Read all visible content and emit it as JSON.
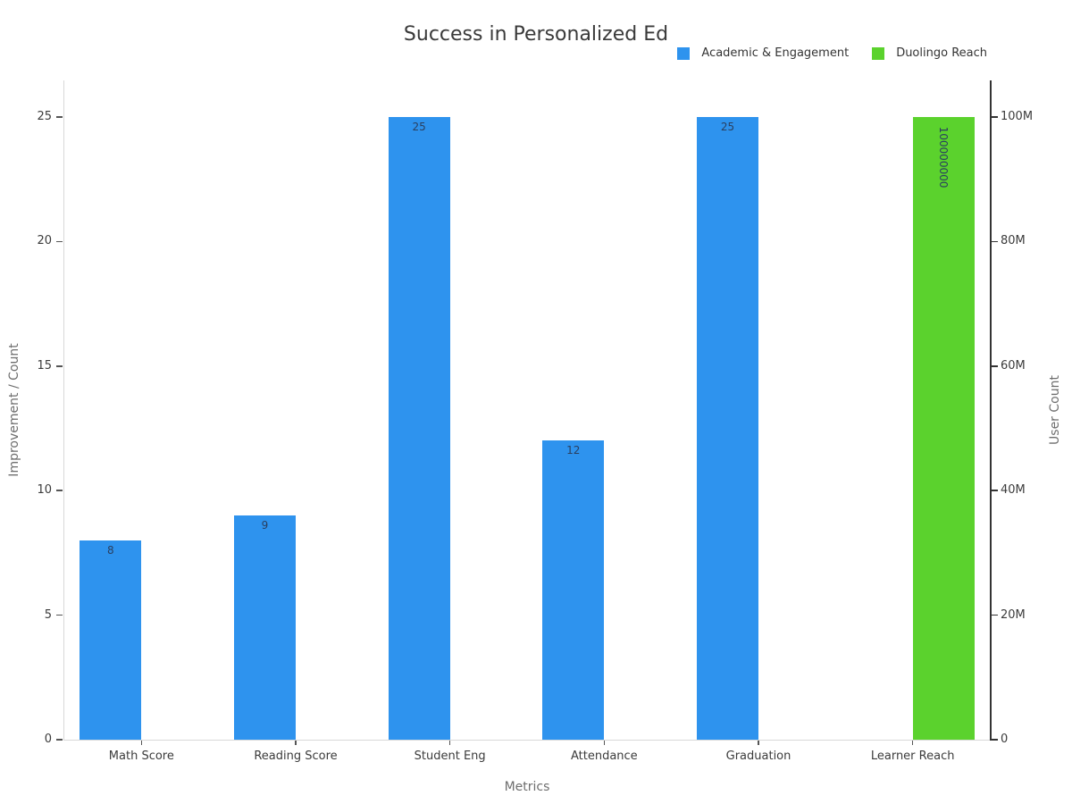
{
  "chart_data": {
    "type": "bar",
    "title": "Success in Personalized Ed",
    "xlabel": "Metrics",
    "ylabel": "Improvement / Count",
    "ylabel_right": "User Count",
    "categories": [
      "Math Score",
      "Reading Score",
      "Student Eng",
      "Attendance",
      "Graduation",
      "Learner Reach"
    ],
    "series": [
      {
        "name": "Academic & Engagement",
        "yaxis": "left",
        "color": "#2e93ee",
        "values": [
          8,
          9,
          25,
          12,
          25,
          null
        ],
        "data_labels": [
          "8",
          "9",
          "25",
          "12",
          "25",
          ""
        ]
      },
      {
        "name": "Duolingo Reach",
        "yaxis": "right",
        "color": "#5bd22d",
        "values": [
          null,
          null,
          null,
          null,
          null,
          100000000
        ],
        "data_labels": [
          "",
          "",
          "",
          "",
          "",
          "100000000"
        ],
        "label_orientation": "vertical"
      }
    ],
    "yticks_left": {
      "labels": [
        "0",
        "5",
        "10",
        "15",
        "20",
        "25"
      ],
      "values": [
        0,
        5,
        10,
        15,
        20,
        25
      ]
    },
    "yticks_right": {
      "labels": [
        "0",
        "20M",
        "40M",
        "60M",
        "80M",
        "100M"
      ],
      "values": [
        0,
        20000000,
        40000000,
        60000000,
        80000000,
        100000000
      ]
    },
    "ylim_left": [
      0,
      26.47
    ],
    "ylim_right": [
      0,
      105900000
    ],
    "grid": false,
    "legend_position": "top-right",
    "bar_value_label_position": "inside-top"
  },
  "colors": {
    "background": "#ffffff",
    "series_blue": "#2e93ee",
    "series_green": "#5bd22d",
    "axis_line_light": "#d9d9d9",
    "axis_line_dark": "#333333",
    "tick_mark": "#555555",
    "tick_text": "#3b3b3b",
    "axis_title_text": "#6e6e6e",
    "title_text": "#3a3a3a",
    "bar_label_text": "#2a3f5f"
  }
}
